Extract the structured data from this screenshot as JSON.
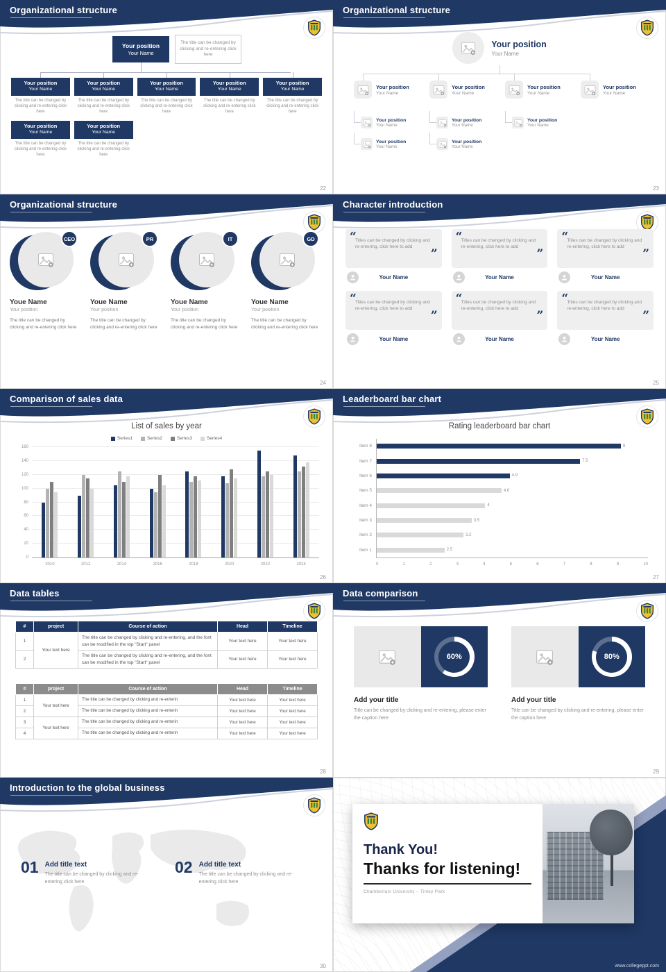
{
  "slides": {
    "s22": {
      "page_no": "22",
      "title": "Organizational structure",
      "root_position": "Your position",
      "root_name": "Your Name",
      "root_note": "The title can be changed by clicking and re-entering click here",
      "node_position": "Your position",
      "node_name": "Your Name",
      "node_note": "The title can be changed by clicking and re-entering click here"
    },
    "s23": {
      "page_no": "23",
      "title": "Organizational structure",
      "root_position": "Your position",
      "root_name": "Your Name",
      "node_position": "Your position",
      "node_name": "Your Name",
      "sub_position": "Your position",
      "sub_name": "Your Name"
    },
    "s24": {
      "page_no": "24",
      "title": "Organizational structure",
      "badges": [
        "CEO",
        "PR",
        "IT",
        "GD"
      ],
      "person_name": "Youe Name",
      "person_position": "Your position",
      "note": "The title can be changed by clicking and re-entering click here"
    },
    "s25": {
      "page_no": "25",
      "title": "Character introduction",
      "quote": "Titles can be changed by clicking and re-entering, click here to add",
      "person_name": "Your Name"
    },
    "s26": {
      "page_no": "26",
      "title": "Comparison of sales data",
      "chart": {
        "type": "bar",
        "title": "List of sales by year",
        "categories": [
          "2010",
          "2012",
          "2014",
          "2016",
          "2018",
          "2020",
          "2022",
          "2024"
        ],
        "series": [
          {
            "name": "Series1",
            "color": "#1f3864",
            "values": [
              80,
              90,
              105,
              100,
              125,
              118,
              155,
              148
            ]
          },
          {
            "name": "Series2",
            "color": "#b3b3b3",
            "values": [
              100,
              120,
              125,
              95,
              110,
              108,
              118,
              125
            ]
          },
          {
            "name": "Series3",
            "color": "#7f7f7f",
            "values": [
              110,
              115,
              110,
              120,
              118,
              128,
              125,
              132
            ]
          },
          {
            "name": "Series4",
            "color": "#d9d9d9",
            "values": [
              95,
              100,
              118,
              105,
              112,
              115,
              120,
              138
            ]
          }
        ],
        "ylim": [
          0,
          160
        ],
        "ytick_step": 20,
        "grid": true,
        "legend_position": "top"
      }
    },
    "s27": {
      "page_no": "27",
      "title": "Leaderboard bar chart",
      "chart": {
        "type": "horizontal-bar",
        "title": "Rating leaderboard bar chart",
        "items": [
          {
            "label": "Item 8",
            "value": 9,
            "color": "#1f3864"
          },
          {
            "label": "Item 7",
            "value": 7.5,
            "color": "#1f3864"
          },
          {
            "label": "Item 6",
            "value": 4.9,
            "color": "#1f3864"
          },
          {
            "label": "Item 5",
            "value": 4.6,
            "color": "#d9d9d9"
          },
          {
            "label": "Item 4",
            "value": 4,
            "color": "#d9d9d9"
          },
          {
            "label": "Item 3",
            "value": 3.5,
            "color": "#d9d9d9"
          },
          {
            "label": "Item 2",
            "value": 3.2,
            "color": "#d9d9d9"
          },
          {
            "label": "Item 1",
            "value": 2.5,
            "color": "#d9d9d9"
          }
        ],
        "xlim": [
          0,
          10
        ],
        "xticks": [
          0,
          1,
          2,
          3,
          4,
          5,
          6,
          7,
          8,
          9,
          10
        ]
      }
    },
    "s28": {
      "page_no": "28",
      "title": "Data tables",
      "table1": {
        "headers": [
          "#",
          "project",
          "Course of action",
          "Head",
          "Timeline"
        ],
        "project": "Your text here",
        "rows": [
          {
            "num": "1",
            "action": "The title can be changed by clicking and re-entering, and the font can be modified in the top \"Start\" panel",
            "head": "Your text here",
            "timeline": "Your text here"
          },
          {
            "num": "2",
            "action": "The title can be changed by clicking and re-entering, and the font can be modified in the top \"Start\" panel",
            "head": "Your text here",
            "timeline": "Your text here"
          }
        ]
      },
      "table2": {
        "headers": [
          "#",
          "project",
          "Course of action",
          "Head",
          "Timeline"
        ],
        "project_a": "Your text here",
        "project_b": "Your text here",
        "rows": [
          {
            "num": "1",
            "action": "The title can be changed by clicking and re-enterin",
            "head": "Your text here",
            "timeline": "Your text here"
          },
          {
            "num": "2",
            "action": "The title can be changed by clicking and re-enterin",
            "head": "Your text here",
            "timeline": "Your text here"
          },
          {
            "num": "3",
            "action": "The title can be changed by clicking and re-enterin",
            "head": "Your text here",
            "timeline": "Your text here"
          },
          {
            "num": "4",
            "action": "The title can be changed by clicking and re-enterin",
            "head": "Your text here",
            "timeline": "Your text here"
          }
        ]
      }
    },
    "s29": {
      "page_no": "29",
      "title": "Data comparison",
      "panels": [
        {
          "percent": 60,
          "percent_label": "60%",
          "title": "Add your title",
          "caption": "Title can be changed by clicking and re-entering, please enter the caption here"
        },
        {
          "percent": 80,
          "percent_label": "80%",
          "title": "Add your title",
          "caption": "Title can be changed by clicking and re-entering, please enter the caption here"
        }
      ]
    },
    "s30": {
      "page_no": "30",
      "title": "Introduction to the global business",
      "items": [
        {
          "num": "01",
          "title": "Add title text",
          "text": "The title can be changed by clicking and re-entering click here"
        },
        {
          "num": "02",
          "title": "Add title text",
          "text": "The title can be changed by clicking and re-entering click here"
        }
      ]
    },
    "thanks": {
      "line1": "Thank You!",
      "line2": "Thanks for listening!",
      "subtitle": "Chamberlain University – Tinley Park",
      "site": "www.collegeppt.com"
    }
  }
}
